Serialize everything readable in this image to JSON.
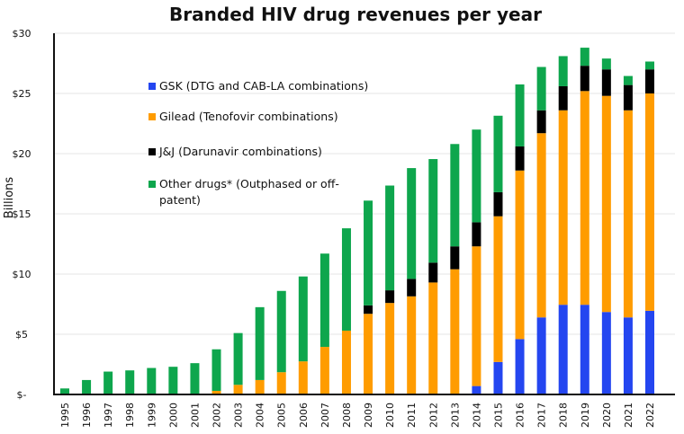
{
  "chart_data": {
    "type": "bar",
    "stacked": true,
    "title": "Branded HIV drug revenues per year",
    "xlabel": "",
    "ylabel": "Billions",
    "ylim": [
      0,
      30
    ],
    "yticks": [
      0,
      5,
      10,
      15,
      20,
      25,
      30
    ],
    "ytick_labels": [
      "$-",
      "$5",
      "$10",
      "$15",
      "$20",
      "$25",
      "$30"
    ],
    "grid": true,
    "legend_position": "upper-left inside",
    "categories": [
      "1995",
      "1996",
      "1997",
      "1998",
      "1999",
      "2000",
      "2001",
      "2002",
      "2003",
      "2004",
      "2005",
      "2006",
      "2007",
      "2008",
      "2009",
      "2010",
      "2011",
      "2012",
      "2013",
      "2014",
      "2015",
      "2016",
      "2017",
      "2018",
      "2019",
      "2020",
      "2021",
      "2022"
    ],
    "series": [
      {
        "name": "GSK (DTG and CAB-LA combinations)",
        "color": "#2446f0",
        "values": [
          0,
          0,
          0,
          0,
          0,
          0,
          0,
          0,
          0,
          0,
          0,
          0,
          0,
          0,
          0,
          0,
          0,
          0,
          0,
          0.7,
          2.7,
          4.6,
          6.4,
          7.45,
          7.45,
          6.85,
          6.4,
          6.95
        ]
      },
      {
        "name": "Gilead (Tenofovir combinations)",
        "color": "#ff9c00",
        "values": [
          0,
          0,
          0,
          0,
          0,
          0,
          0,
          0.3,
          0.8,
          1.2,
          1.85,
          2.75,
          3.95,
          5.3,
          6.7,
          7.6,
          8.15,
          9.3,
          10.4,
          11.6,
          12.1,
          14.0,
          15.3,
          16.15,
          17.75,
          17.95,
          17.2,
          18.05
        ]
      },
      {
        "name": "J&J (Darunavir combinations)",
        "color": "#000000",
        "values": [
          0,
          0,
          0,
          0,
          0,
          0,
          0,
          0,
          0,
          0,
          0,
          0,
          0,
          0,
          0.7,
          1.05,
          1.45,
          1.65,
          1.9,
          2.0,
          2.0,
          2.0,
          1.9,
          2.0,
          2.1,
          2.2,
          2.1,
          2.0
        ]
      },
      {
        "name": "Other drugs* (Outphased or off-patent)",
        "color": "#0ea64d",
        "values": [
          0.5,
          1.2,
          1.9,
          2.0,
          2.2,
          2.3,
          2.6,
          3.45,
          4.3,
          6.05,
          6.75,
          7.05,
          7.75,
          8.5,
          8.7,
          8.7,
          9.2,
          8.6,
          8.5,
          7.7,
          6.35,
          5.15,
          3.6,
          2.5,
          1.5,
          0.9,
          0.75,
          0.65
        ]
      }
    ],
    "legend_lines": [
      [
        "GSK (DTG and CAB-LA combinations)"
      ],
      [
        "Gilead (Tenofovir combinations)"
      ],
      [
        "J&J (Darunavir combinations)"
      ],
      [
        "Other drugs* (Outphased or off-",
        "patent)"
      ]
    ]
  }
}
